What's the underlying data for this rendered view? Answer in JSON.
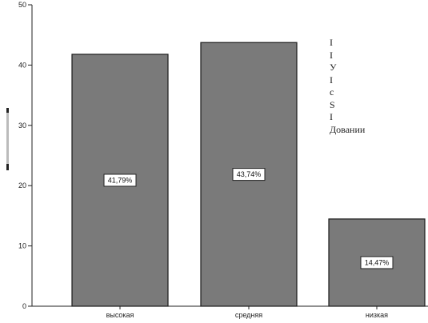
{
  "chart_data": {
    "type": "bar",
    "title": "",
    "xlabel": "",
    "ylabel": "",
    "categories": [
      "высокая",
      "средняя",
      "низкая"
    ],
    "values": [
      41.79,
      43.74,
      14.47
    ],
    "data_labels": [
      "41,79%",
      "43,74%",
      "14,47%"
    ],
    "ylim": [
      0,
      50
    ],
    "yticks": [
      0,
      10,
      20,
      30,
      40,
      50
    ],
    "grid": false,
    "legend": "none",
    "bar_color": "#7a7a7a",
    "bar_edge_color": "#1a1a1a"
  },
  "overlay_text": {
    "lines": [
      "I",
      "I",
      "У",
      "I",
      "c",
      "S",
      "I",
      "Довании"
    ]
  }
}
